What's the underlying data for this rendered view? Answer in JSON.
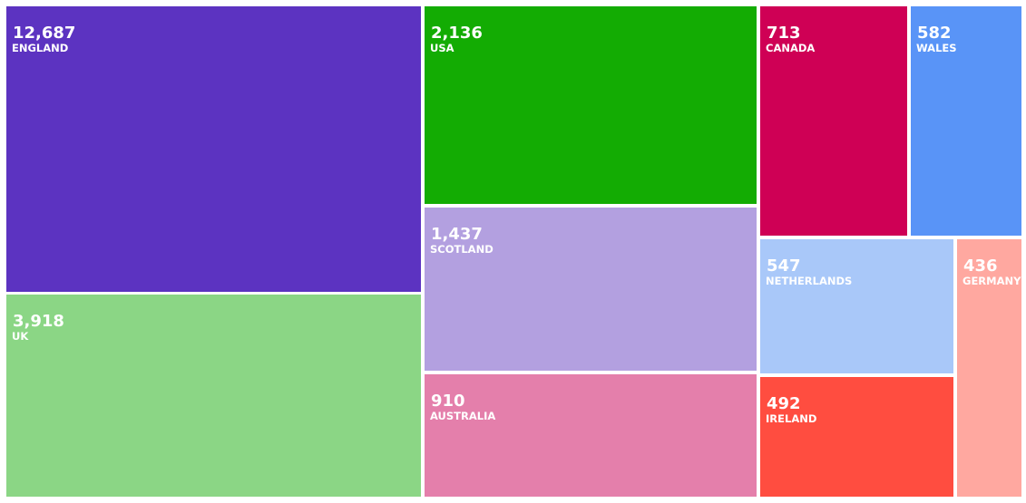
{
  "chart_data": {
    "type": "treemap",
    "items": [
      {
        "name": "ENGLAND",
        "label": "12,687",
        "value": 12687,
        "color": "#5c33c1"
      },
      {
        "name": "UK",
        "label": "3,918",
        "value": 3918,
        "color": "#8bd685"
      },
      {
        "name": "USA",
        "label": "2,136",
        "value": 2136,
        "color": "#13ac03"
      },
      {
        "name": "SCOTLAND",
        "label": "1,437",
        "value": 1437,
        "color": "#b3a0e0"
      },
      {
        "name": "AUSTRALIA",
        "label": "910",
        "value": 910,
        "color": "#e47fab"
      },
      {
        "name": "CANADA",
        "label": "713",
        "value": 713,
        "color": "#cf0055"
      },
      {
        "name": "WALES",
        "label": "582",
        "value": 582,
        "color": "#5994f7"
      },
      {
        "name": "NETHERLANDS",
        "label": "547",
        "value": 547,
        "color": "#a9c8f9"
      },
      {
        "name": "IRELAND",
        "label": "492",
        "value": 492,
        "color": "#ff4d40"
      },
      {
        "name": "GERMANY",
        "label": "436",
        "value": 436,
        "color": "#ffa8a0"
      }
    ]
  }
}
